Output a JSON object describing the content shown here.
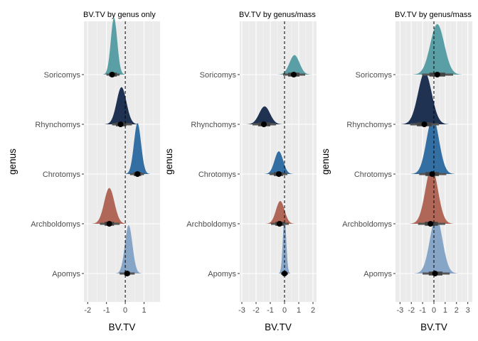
{
  "chart_data": [
    {
      "type": "density",
      "title": "BV.TV by genus only",
      "xlabel": "BV.TV",
      "ylabel": "genus",
      "xlim": [
        -2.2,
        1.85
      ],
      "xticks": [
        -2,
        -1,
        0,
        1
      ],
      "reference_line_x": 0,
      "grid": true,
      "categories": [
        "Apomys",
        "Archboldomys",
        "Chrotomys",
        "Rhynchomys",
        "Soricomys"
      ],
      "series": [
        {
          "category": "Apomys",
          "color": "#86a5c7",
          "mean": 0.18,
          "sd": 0.2,
          "point": 0.1,
          "interval_66": [
            -0.05,
            0.25
          ],
          "interval_95": [
            -0.3,
            0.5
          ]
        },
        {
          "category": "Archboldomys",
          "color": "#b06758",
          "mean": -0.85,
          "sd": 0.27,
          "point": -0.85,
          "interval_66": [
            -1.1,
            -0.6
          ],
          "interval_95": [
            -1.35,
            -0.3
          ]
        },
        {
          "category": "Chrotomys",
          "color": "#336fa3",
          "mean": 0.65,
          "sd": 0.19,
          "point": 0.65,
          "interval_66": [
            0.45,
            0.85
          ],
          "interval_95": [
            0.25,
            1.0
          ]
        },
        {
          "category": "Rhynchomys",
          "color": "#1f3252",
          "mean": -0.2,
          "sd": 0.26,
          "point": -0.25,
          "interval_66": [
            -0.5,
            0.05
          ],
          "interval_95": [
            -0.7,
            0.35
          ]
        },
        {
          "category": "Soricomys",
          "color": "#5a9fa6",
          "mean": -0.6,
          "sd": 0.17,
          "point": -0.7,
          "interval_66": [
            -0.85,
            -0.45
          ],
          "interval_95": [
            -1.0,
            -0.3
          ]
        }
      ]
    },
    {
      "type": "density",
      "title": "BV.TV by genus/mass",
      "xlabel": "BV.TV",
      "ylabel": "genus",
      "xlim": [
        -3.15,
        2.25
      ],
      "xticks": [
        -3,
        -2,
        -1,
        0,
        1,
        2
      ],
      "reference_line_x": 0,
      "grid": true,
      "categories": [
        "Apomys",
        "Archboldomys",
        "Chrotomys",
        "Rhynchomys",
        "Soricomys"
      ],
      "series": [
        {
          "category": "Apomys",
          "color": "#86a5c7",
          "mean": 0.0,
          "sd": 0.12,
          "point": 0.0,
          "interval_66": [
            -0.12,
            0.12
          ],
          "interval_95": [
            -0.25,
            0.25
          ]
        },
        {
          "category": "Archboldomys",
          "color": "#b06758",
          "mean": -0.3,
          "sd": 0.3,
          "point": -0.35,
          "interval_66": [
            -0.65,
            -0.05
          ],
          "interval_95": [
            -0.95,
            0.3
          ]
        },
        {
          "category": "Chrotomys",
          "color": "#336fa3",
          "mean": -0.4,
          "sd": 0.3,
          "point": -0.4,
          "interval_66": [
            -0.75,
            -0.1
          ],
          "interval_95": [
            -1.05,
            0.2
          ]
        },
        {
          "category": "Rhynchomys",
          "color": "#1f3252",
          "mean": -1.4,
          "sd": 0.38,
          "point": -1.45,
          "interval_66": [
            -1.85,
            -1.0
          ],
          "interval_95": [
            -2.25,
            -0.6
          ]
        },
        {
          "category": "Soricomys",
          "color": "#5a9fa6",
          "mean": 0.7,
          "sd": 0.35,
          "point": 0.65,
          "interval_66": [
            0.25,
            1.05
          ],
          "interval_95": [
            -0.1,
            1.45
          ]
        }
      ]
    },
    {
      "type": "density",
      "title": "BV.TV by genus/mass",
      "xlabel": "BV.TV",
      "ylabel": "genus",
      "xlim": [
        -3.4,
        3.4
      ],
      "xticks": [
        -3,
        -2,
        -1,
        0,
        1,
        2,
        3
      ],
      "reference_line_x": 0,
      "grid": true,
      "categories": [
        "Apomys",
        "Archboldomys",
        "Chrotomys",
        "Rhynchomys",
        "Soricomys"
      ],
      "series": [
        {
          "category": "Apomys",
          "color": "#86a5c7",
          "mean": 0.2,
          "sd": 0.55,
          "point": 0.1,
          "interval_66": [
            -0.45,
            0.75
          ],
          "interval_95": [
            -1.0,
            1.4
          ]
        },
        {
          "category": "Archboldomys",
          "color": "#b06758",
          "mean": -0.2,
          "sd": 0.55,
          "point": -0.3,
          "interval_66": [
            -0.8,
            0.35
          ],
          "interval_95": [
            -1.4,
            1.0
          ]
        },
        {
          "category": "Chrotomys",
          "color": "#336fa3",
          "mean": -0.1,
          "sd": 0.55,
          "point": -0.15,
          "interval_66": [
            -0.75,
            0.45
          ],
          "interval_95": [
            -1.3,
            1.1
          ]
        },
        {
          "category": "Rhynchomys",
          "color": "#1f3252",
          "mean": -0.8,
          "sd": 0.6,
          "point": -0.85,
          "interval_66": [
            -1.5,
            -0.2
          ],
          "interval_95": [
            -2.1,
            0.45
          ]
        },
        {
          "category": "Soricomys",
          "color": "#5a9fa6",
          "mean": 0.3,
          "sd": 0.62,
          "point": 0.3,
          "interval_66": [
            -0.4,
            1.0
          ],
          "interval_95": [
            -1.05,
            1.7
          ]
        }
      ]
    }
  ]
}
